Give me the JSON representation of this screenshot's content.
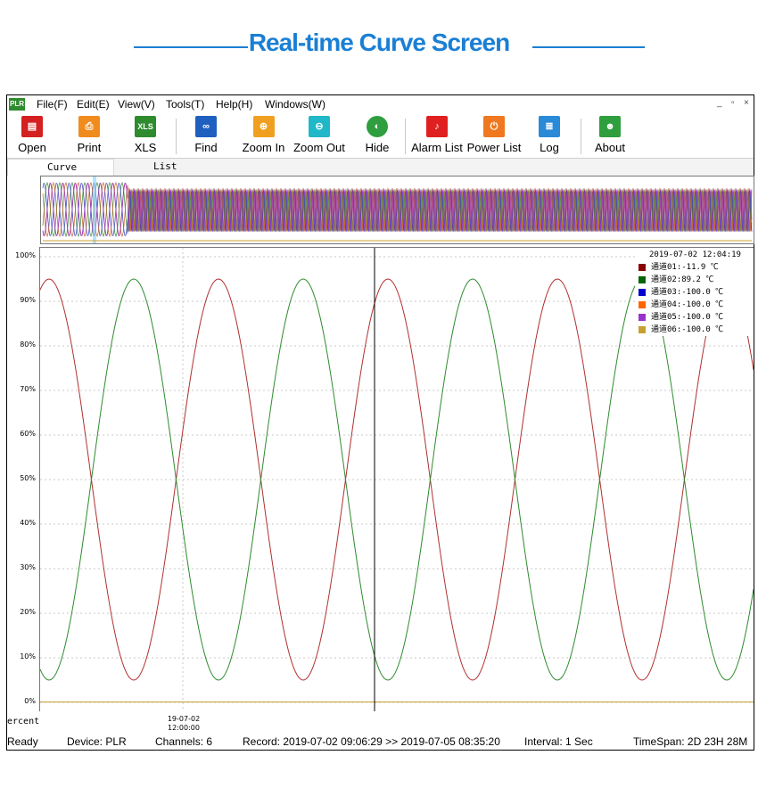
{
  "banner": {
    "title": "Real-time Curve Screen"
  },
  "app": {
    "logo_text": "PLR"
  },
  "menu": [
    "File(F)",
    "Edit(E)",
    "View(V)",
    "Tools(T)",
    "Help(H)",
    "Windows(W)"
  ],
  "window_controls": {
    "min": "_",
    "restore": "▫",
    "close": "×"
  },
  "toolbar": {
    "open": "Open",
    "print": "Print",
    "xls": "XLS",
    "find": "Find",
    "zoom_in": "Zoom In",
    "zoom_out": "Zoom Out",
    "hide": "Hide",
    "alarm_list": "Alarm List",
    "power_list": "Power List",
    "log": "Log",
    "about": "About"
  },
  "tabs": {
    "curve": "Curve",
    "list": "List"
  },
  "y_ticks": [
    "100%",
    "90%",
    "80%",
    "70%",
    "60%",
    "50%",
    "40%",
    "30%",
    "20%",
    "10%",
    "0%"
  ],
  "legend": {
    "timestamp": "2019-07-02 12:04:19",
    "rows": [
      {
        "label": "通道01:-11.9 ℃",
        "color": "#8b0000"
      },
      {
        "label": "通道02:89.2 ℃",
        "color": "#006400"
      },
      {
        "label": "通道03:-100.0 ℃",
        "color": "#0000cd"
      },
      {
        "label": "通道04:-100.0 ℃",
        "color": "#ff6600"
      },
      {
        "label": "通道05:-100.0 ℃",
        "color": "#9932cc"
      },
      {
        "label": "通道06:-100.0 ℃",
        "color": "#c8a032"
      }
    ]
  },
  "x_axis": {
    "date": "19-07-02",
    "time": "12:00:00",
    "unit": "ercent"
  },
  "status": {
    "ready": "Ready",
    "device": "Device: PLR",
    "channels": "Channels: 6",
    "record": "Record: 2019-07-02 09:06:29 >> 2019-07-05 08:35:20",
    "interval": "Interval: 1 Sec",
    "timespan": "TimeSpan: 2D 23H 28M"
  },
  "chart_data": {
    "type": "line",
    "ylabel": "ercent",
    "ylim": [
      0,
      100
    ],
    "y_ticks": [
      "100%",
      "90%",
      "80%",
      "70%",
      "60%",
      "50%",
      "40%",
      "30%",
      "20%",
      "10%",
      "0%"
    ],
    "x_tick_label": "19-07-02 12:00:00",
    "series": [
      {
        "name": "通道01",
        "color": "#b03030",
        "peaks": [
          95,
          95,
          95
        ],
        "troughs": [
          5,
          5,
          5
        ],
        "period_samples": 94,
        "phase_shift": 0.0
      },
      {
        "name": "通道02",
        "color": "#2e8b2e",
        "peaks": [
          95,
          95,
          95
        ],
        "troughs": [
          5,
          5,
          5
        ],
        "period_samples": 94,
        "phase_shift": 0.5
      },
      {
        "name": "通道06",
        "color": "#c8a032",
        "constant": 0
      }
    ]
  }
}
